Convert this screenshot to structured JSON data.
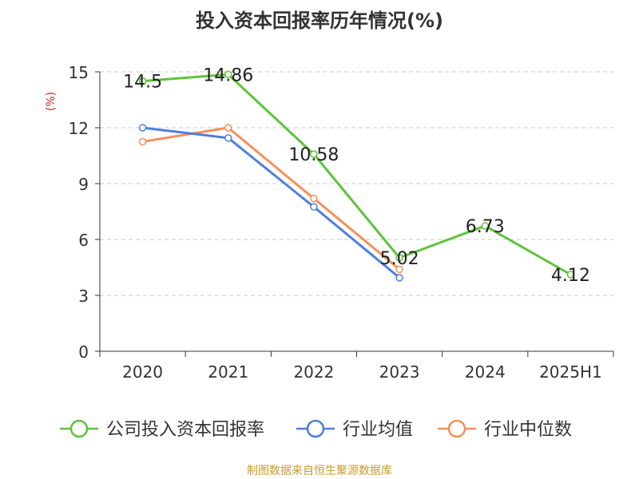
{
  "chart_data": {
    "type": "line",
    "title": "投入资本回报率历年情况(%)",
    "ylabel": "(%)",
    "xlabel": "",
    "categories": [
      "2020",
      "2021",
      "2022",
      "2023",
      "2024",
      "2025H1"
    ],
    "ylim": [
      0,
      15
    ],
    "yticks": [
      0,
      3,
      6,
      9,
      12,
      15
    ],
    "grid": true,
    "legend_position": "bottom",
    "series": [
      {
        "name": "公司投入资本回报率",
        "color": "#5cc43a",
        "values": [
          14.5,
          14.86,
          10.58,
          5.02,
          6.73,
          4.12
        ],
        "data_labels": [
          "14.5",
          "14.86",
          "10.58",
          "5.02",
          "6.73",
          "4.12"
        ]
      },
      {
        "name": "行业均值",
        "color": "#4f7fdc",
        "values": [
          12.0,
          11.45,
          7.75,
          3.95,
          null,
          null
        ],
        "data_labels": []
      },
      {
        "name": "行业中位数",
        "color": "#f5905a",
        "values": [
          11.25,
          12.0,
          8.2,
          4.4,
          null,
          null
        ],
        "data_labels": []
      }
    ]
  },
  "source": "制图数据来自恒生聚源数据库"
}
